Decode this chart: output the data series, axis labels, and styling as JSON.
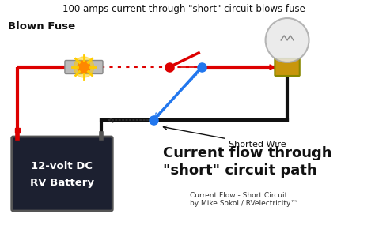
{
  "bg_color": "#ffffff",
  "title_text": "100 amps current through \"short\" circuit blows fuse",
  "title_fontsize": 8.5,
  "title_color": "#111111",
  "blown_fuse_label": "Blown Fuse",
  "shorted_wire_label": "Shorted Wire",
  "big_title1": "Current flow through",
  "big_title2": "\"short\" circuit path",
  "big_title_color": "#111111",
  "big_title_fontsize": 13,
  "credit1": "Current Flow - Short Circuit",
  "credit2": "by Mike Sokol / RVelectricity™",
  "credit_fontsize": 6.5,
  "battery_label1": "12-volt DC",
  "battery_label2": "RV Battery",
  "battery_label_color": "#ffffff",
  "battery_label_fontsize": 9.5,
  "wire_red_color": "#dd0000",
  "wire_black_color": "#111111",
  "wire_blue_color": "#2277ee",
  "fuse_color": "#aaaaaa",
  "spark_color": "#ff8800"
}
